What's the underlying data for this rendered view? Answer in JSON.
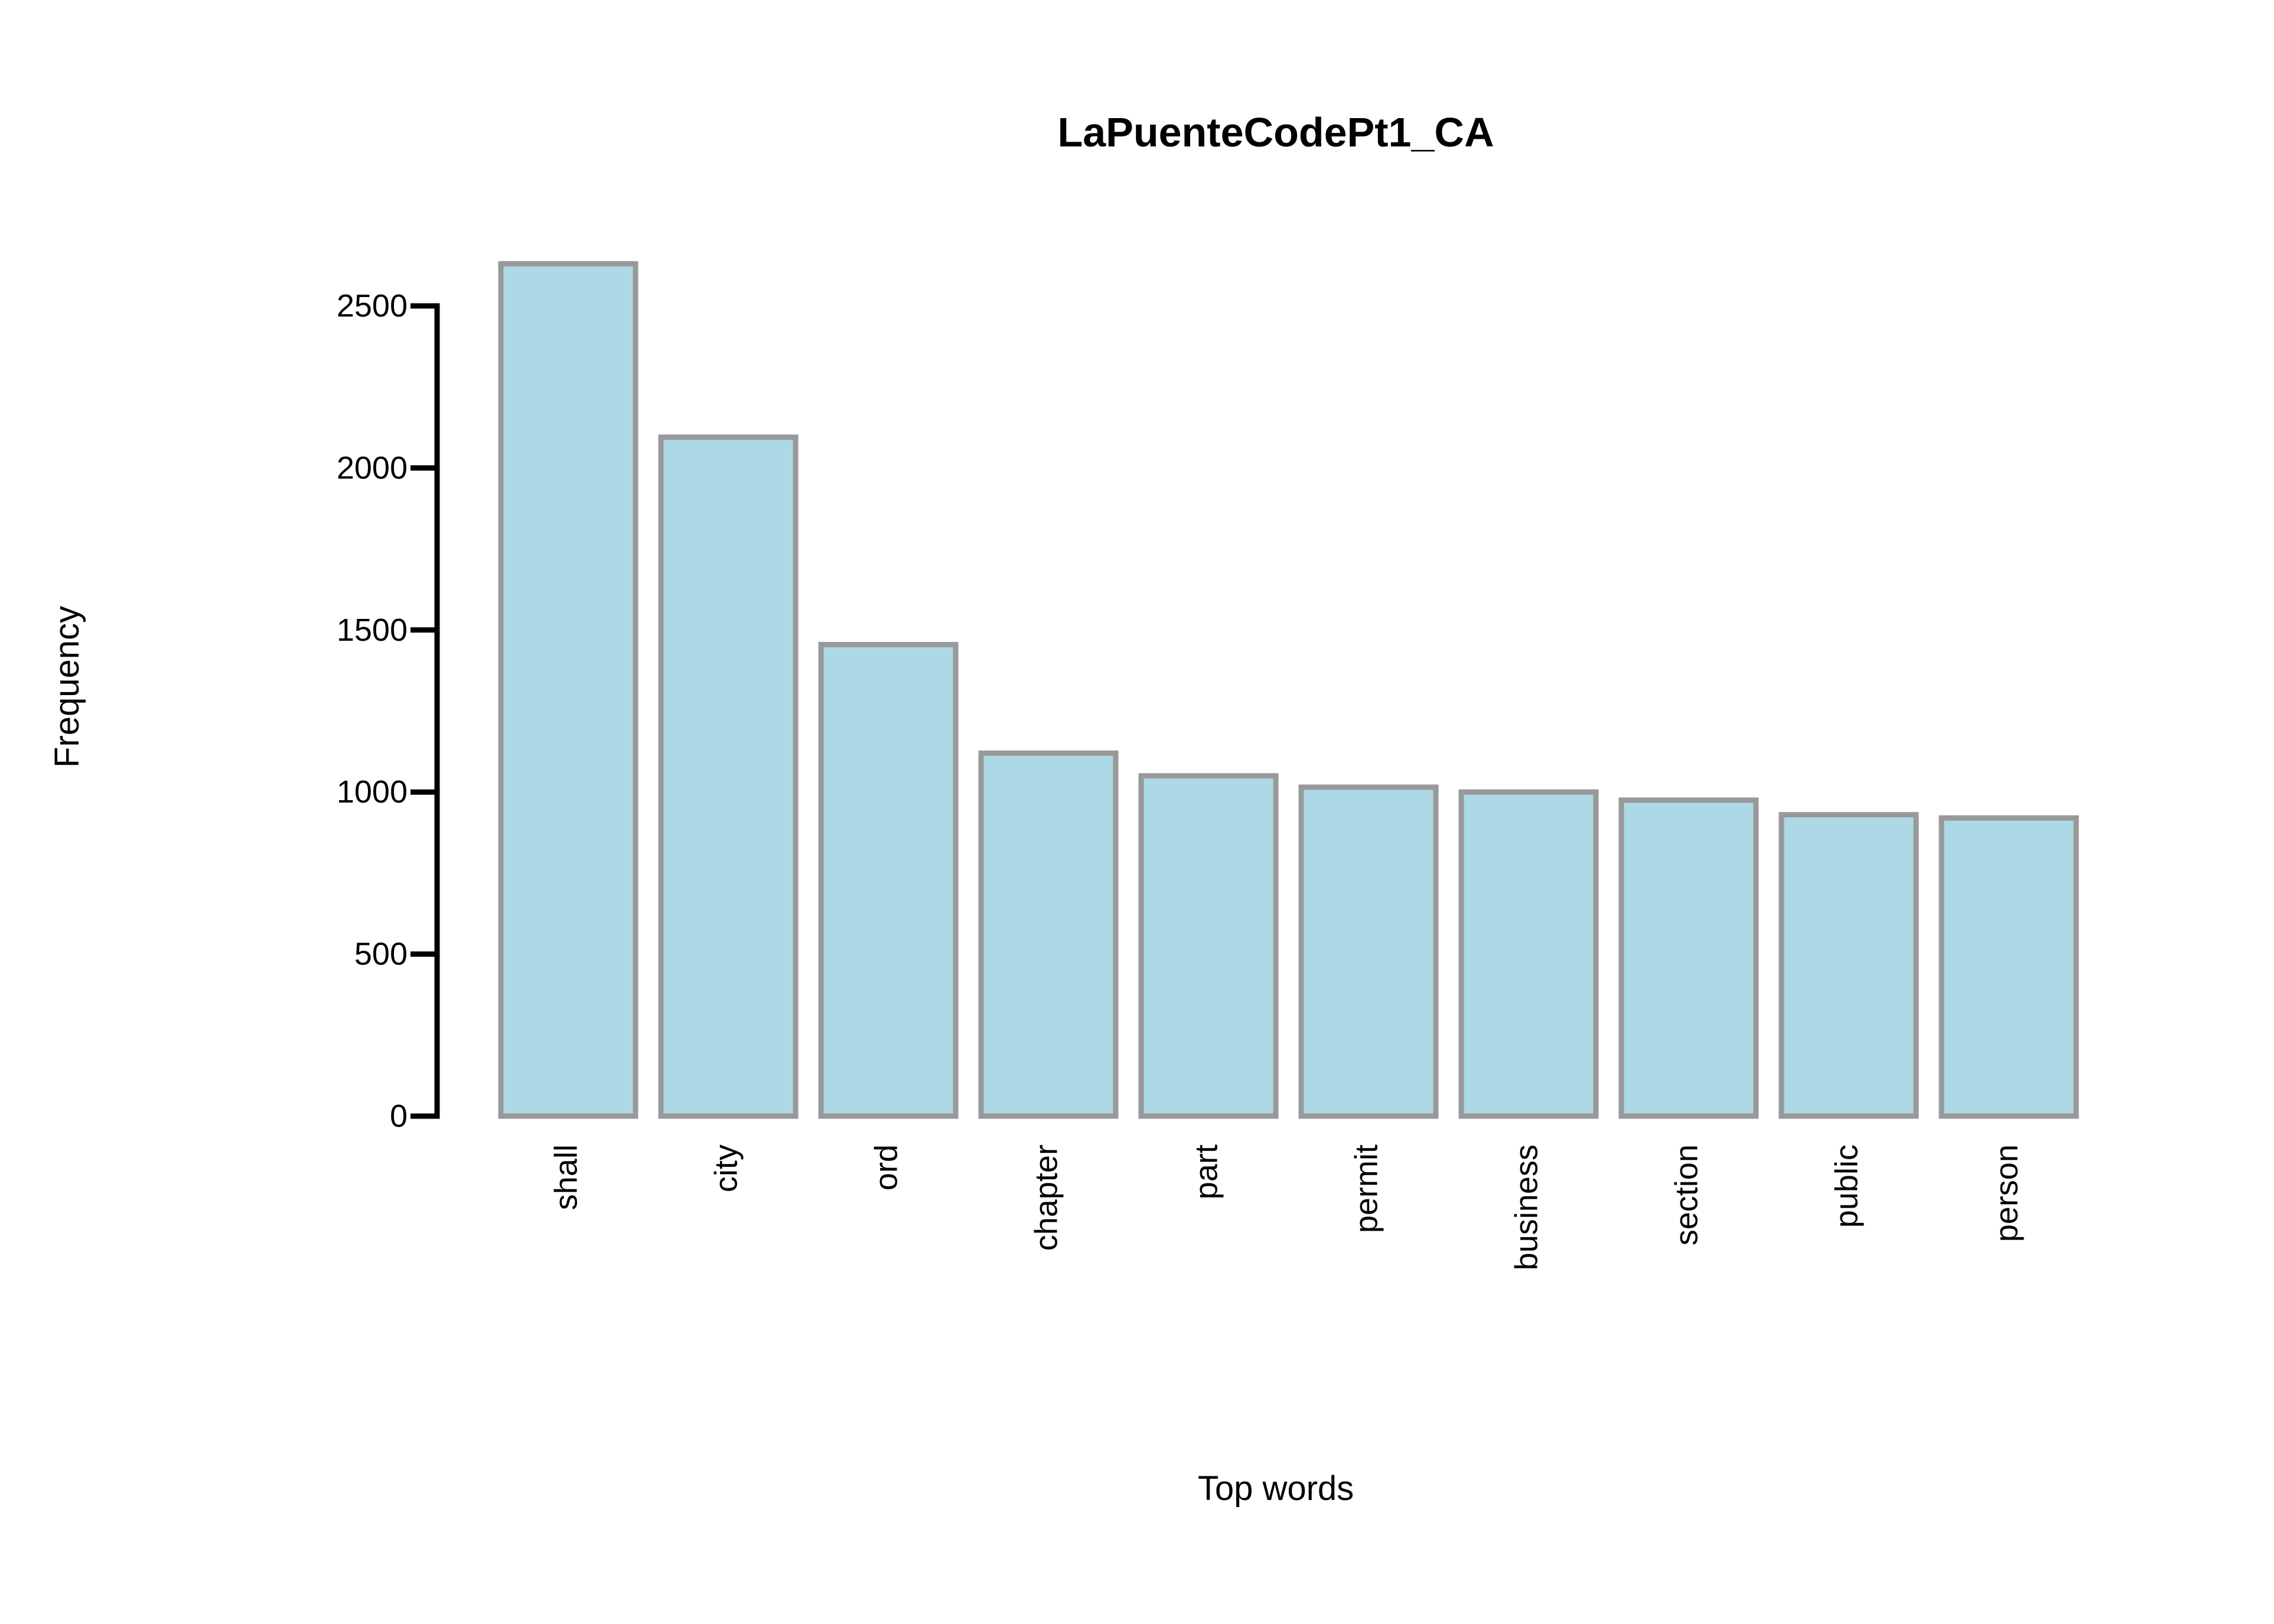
{
  "chart_data": {
    "type": "bar",
    "title": "LaPuenteCodePt1_CA",
    "xlabel": "Top words",
    "ylabel": "Frequency",
    "categories": [
      "shall",
      "city",
      "ord",
      "chapter",
      "part",
      "permit",
      "business",
      "section",
      "public",
      "person"
    ],
    "values": [
      2630,
      2095,
      1455,
      1120,
      1050,
      1015,
      1000,
      975,
      930,
      920
    ],
    "ylim": [
      0,
      2500
    ],
    "yticks": [
      0,
      500,
      1000,
      1500,
      2000,
      2500
    ],
    "grid": false,
    "legend": "none",
    "colors": {
      "bar_fill": "#add8e6",
      "bar_stroke": "#999999",
      "axis": "#000000"
    }
  }
}
